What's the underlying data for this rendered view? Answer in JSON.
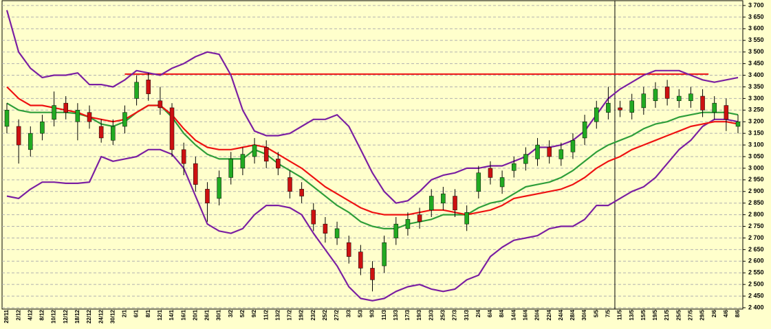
{
  "chart_data": {
    "type": "candlestick",
    "categories": [
      "28/11",
      "2/12",
      "4/12",
      "8/12",
      "10/12",
      "12/12",
      "18/12",
      "22/12",
      "24/12",
      "30/12",
      "2/1",
      "6/1",
      "8/1",
      "12/1",
      "14/1",
      "16/1",
      "20/1",
      "26/1",
      "30/1",
      "3/2",
      "5/2",
      "9/2",
      "11/2",
      "13/2",
      "17/2",
      "19/2",
      "23/2",
      "25/2",
      "27/2",
      "3/3",
      "5/3",
      "9/3",
      "11/3",
      "13/3",
      "17/3",
      "19/3",
      "23/3",
      "25/3",
      "27/3",
      "31/3",
      "2/4",
      "6/4",
      "8/4",
      "14/4",
      "16/4",
      "20/4",
      "22/4",
      "24/4",
      "28/4",
      "30/4",
      "5/5",
      "7/5",
      "11/5",
      "13/5",
      "15/5",
      "19/5",
      "21/5",
      "25/5",
      "27/5",
      "29/5",
      "2/6",
      "4/6",
      "8/6"
    ],
    "open": [
      3180,
      3180,
      3080,
      3150,
      3210,
      3280,
      3200,
      3240,
      3180,
      3120,
      3180,
      3300,
      3380,
      3290,
      3260,
      3080,
      3020,
      2910,
      2870,
      2960,
      3000,
      3050,
      3090,
      3040,
      2960,
      2910,
      2820,
      2760,
      2700,
      2680,
      2640,
      2570,
      2580,
      2700,
      2740,
      2800,
      2820,
      2850,
      2880,
      2760,
      2900,
      3000,
      2920,
      2990,
      3020,
      3040,
      3090,
      3040,
      3070,
      3130,
      3200,
      3240,
      3260,
      3240,
      3260,
      3290,
      3350,
      3290,
      3290,
      3310,
      3240,
      3270,
      3180
    ],
    "high": [
      3280,
      3210,
      3180,
      3230,
      3330,
      3310,
      3280,
      3270,
      3210,
      3210,
      3270,
      3400,
      3410,
      3350,
      3280,
      3110,
      3050,
      2940,
      2990,
      3070,
      3090,
      3130,
      3120,
      3070,
      2990,
      2940,
      2850,
      2790,
      2770,
      2710,
      2670,
      2600,
      2710,
      2790,
      2810,
      2830,
      2910,
      2920,
      2910,
      2840,
      3010,
      3030,
      2990,
      3050,
      3090,
      3130,
      3120,
      3110,
      3150,
      3230,
      3290,
      3350,
      3290,
      3320,
      3350,
      3370,
      3380,
      3340,
      3350,
      3340,
      3310,
      3300,
      3230
    ],
    "low": [
      3150,
      3020,
      3050,
      3120,
      3180,
      3210,
      3120,
      3170,
      3110,
      3100,
      3150,
      3270,
      3290,
      3230,
      3050,
      2970,
      2900,
      2770,
      2840,
      2930,
      2970,
      3020,
      3000,
      2970,
      2870,
      2850,
      2730,
      2680,
      2670,
      2590,
      2540,
      2470,
      2550,
      2670,
      2710,
      2740,
      2790,
      2820,
      2790,
      2730,
      2870,
      2930,
      2890,
      2960,
      2990,
      3010,
      3020,
      3010,
      3040,
      3100,
      3170,
      3210,
      3220,
      3210,
      3230,
      3260,
      3270,
      3260,
      3260,
      3220,
      3210,
      3160,
      3150
    ],
    "close": [
      3250,
      3100,
      3150,
      3200,
      3270,
      3240,
      3250,
      3200,
      3130,
      3180,
      3240,
      3370,
      3320,
      3260,
      3080,
      3020,
      2930,
      2850,
      2960,
      3040,
      3060,
      3100,
      3030,
      3000,
      2900,
      2880,
      2760,
      2720,
      2740,
      2620,
      2570,
      2520,
      2680,
      2760,
      2780,
      2770,
      2880,
      2890,
      2820,
      2810,
      2980,
      2960,
      2960,
      3020,
      3060,
      3100,
      3050,
      3080,
      3120,
      3200,
      3260,
      3280,
      3250,
      3290,
      3320,
      3340,
      3300,
      3310,
      3320,
      3250,
      3280,
      3210,
      3200
    ],
    "up_color": "#22aa22",
    "down_color": "#cc1111",
    "series": [
      {
        "color": "#7a1fa2",
        "values": [
          3680,
          3500,
          3430,
          3390,
          3400,
          3400,
          3410,
          3360,
          3360,
          3350,
          3380,
          3420,
          3410,
          3400,
          3430,
          3450,
          3480,
          3500,
          3490,
          3400,
          3250,
          3160,
          3140,
          3140,
          3150,
          3180,
          3210,
          3210,
          3230,
          3180,
          3080,
          2980,
          2900,
          2850,
          2860,
          2900,
          2950,
          2970,
          2980,
          3000,
          3000,
          3010,
          3010,
          3030,
          3050,
          3090,
          3090,
          3100,
          3120,
          3160,
          3230,
          3300,
          3340,
          3370,
          3400,
          3420,
          3420,
          3420,
          3400,
          3380,
          3370,
          3380,
          3390
        ]
      },
      {
        "color": "#7a1fa2",
        "values": [
          2880,
          2870,
          2910,
          2940,
          2940,
          2935,
          2935,
          2940,
          3050,
          3030,
          3040,
          3050,
          3080,
          3080,
          3060,
          3000,
          2880,
          2760,
          2730,
          2720,
          2740,
          2800,
          2840,
          2840,
          2830,
          2800,
          2720,
          2650,
          2580,
          2490,
          2440,
          2430,
          2440,
          2470,
          2490,
          2500,
          2480,
          2470,
          2480,
          2520,
          2540,
          2620,
          2660,
          2690,
          2700,
          2710,
          2740,
          2750,
          2750,
          2780,
          2840,
          2840,
          2870,
          2900,
          2920,
          2960,
          3020,
          3080,
          3120,
          3180,
          3210,
          3210,
          3200
        ]
      },
      {
        "color": "#2e9e3a",
        "values": [
          3280,
          3250,
          3240,
          3240,
          3240,
          3240,
          3235,
          3220,
          3190,
          3180,
          3200,
          3240,
          3270,
          3270,
          3220,
          3150,
          3100,
          3060,
          3040,
          3040,
          3040,
          3080,
          3060,
          3020,
          2990,
          2960,
          2920,
          2880,
          2840,
          2810,
          2770,
          2750,
          2740,
          2740,
          2760,
          2770,
          2780,
          2800,
          2800,
          2800,
          2830,
          2850,
          2860,
          2890,
          2920,
          2930,
          2940,
          2960,
          2990,
          3030,
          3070,
          3100,
          3120,
          3140,
          3170,
          3190,
          3200,
          3220,
          3230,
          3240,
          3240,
          3240,
          3230
        ]
      },
      {
        "color": "#ee1111",
        "values": [
          3350,
          3300,
          3270,
          3270,
          3260,
          3250,
          3240,
          3220,
          3210,
          3200,
          3210,
          3240,
          3270,
          3270,
          3230,
          3170,
          3120,
          3090,
          3080,
          3080,
          3090,
          3100,
          3090,
          3060,
          3030,
          3000,
          2960,
          2920,
          2890,
          2860,
          2830,
          2810,
          2800,
          2800,
          2800,
          2810,
          2820,
          2820,
          2810,
          2800,
          2810,
          2820,
          2840,
          2870,
          2880,
          2890,
          2900,
          2910,
          2930,
          2960,
          3000,
          3030,
          3050,
          3080,
          3100,
          3120,
          3140,
          3160,
          3180,
          3190,
          3200,
          3200,
          3190
        ]
      }
    ],
    "hline": {
      "value": 3405,
      "color": "#ee1111",
      "from": "2/1",
      "to": "29/5"
    },
    "vline": "11/5",
    "ylim": [
      2400,
      3700
    ],
    "yticks": [
      {
        "value": 2400,
        "label": "2 400"
      },
      {
        "value": 2450,
        "label": "2 450"
      },
      {
        "value": 2500,
        "label": "2 500"
      },
      {
        "value": 2550,
        "label": "2 550"
      },
      {
        "value": 2600,
        "label": "2 600"
      },
      {
        "value": 2650,
        "label": "2 650"
      },
      {
        "value": 2700,
        "label": "2 700"
      },
      {
        "value": 2750,
        "label": "2 750"
      },
      {
        "value": 2800,
        "label": "2 800"
      },
      {
        "value": 2850,
        "label": "2 850"
      },
      {
        "value": 2900,
        "label": "2 900"
      },
      {
        "value": 2950,
        "label": "2 950"
      },
      {
        "value": 3000,
        "label": "3 000"
      },
      {
        "value": 3050,
        "label": "3 050"
      },
      {
        "value": 3100,
        "label": "3 100"
      },
      {
        "value": 3150,
        "label": "3 150"
      },
      {
        "value": 3200,
        "label": "3 200"
      },
      {
        "value": 3250,
        "label": "3 250"
      },
      {
        "value": 3300,
        "label": "3 300"
      },
      {
        "value": 3350,
        "label": "3 350"
      },
      {
        "value": 3400,
        "label": "3 400"
      },
      {
        "value": 3450,
        "label": "3 450"
      },
      {
        "value": 3500,
        "label": "3 500"
      },
      {
        "value": 3550,
        "label": "3 550"
      },
      {
        "value": 3600,
        "label": "3 600"
      },
      {
        "value": 3650,
        "label": "3 650"
      },
      {
        "value": 3700,
        "label": "3 700"
      }
    ],
    "grid": true
  }
}
